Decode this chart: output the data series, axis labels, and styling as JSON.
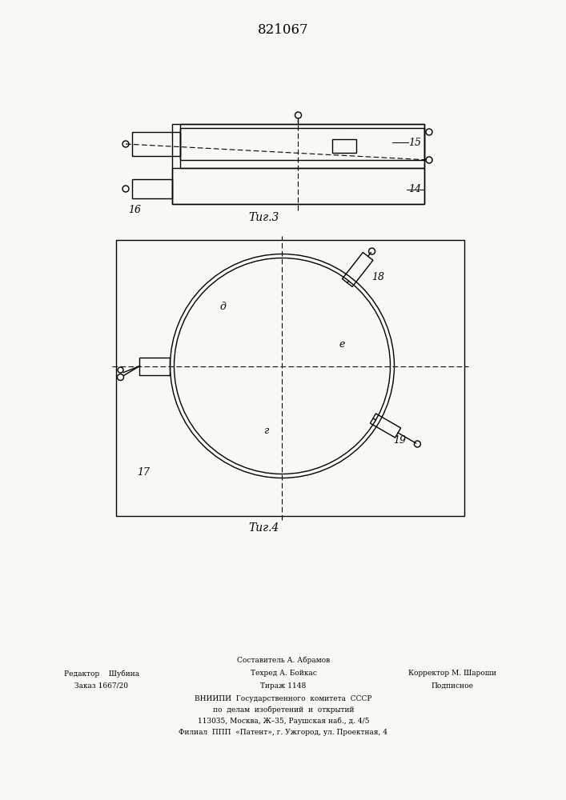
{
  "title": "821067",
  "bg_color": "#f8f8f5",
  "fig3_label": "Τиг.3",
  "fig4_label": "Τиг.4",
  "footer_lines": [
    [
      0.5,
      "Составитель А. Абрамов"
    ],
    [
      0.18,
      "Редактор    Шубина"
    ],
    [
      0.18,
      "Заказ 1667/20"
    ]
  ],
  "footer_col2": [
    [
      0.46,
      "Техред А. Бойкас"
    ],
    [
      0.46,
      "Тираж 1148"
    ]
  ],
  "footer_col3": [
    [
      0.75,
      "Корректор М. Шароши"
    ],
    [
      0.75,
      "Подписное"
    ]
  ],
  "footer_center": [
    "ВНИИПИ  Государственного  комитета  СССР",
    "по  делам  изобретений  и  открытий",
    "113035, Москва, Ж—35, Раушская наб., д. 4/5",
    "Филиал  ППП  «Патент», г. Ужгород, ул. Проектная, 4"
  ]
}
